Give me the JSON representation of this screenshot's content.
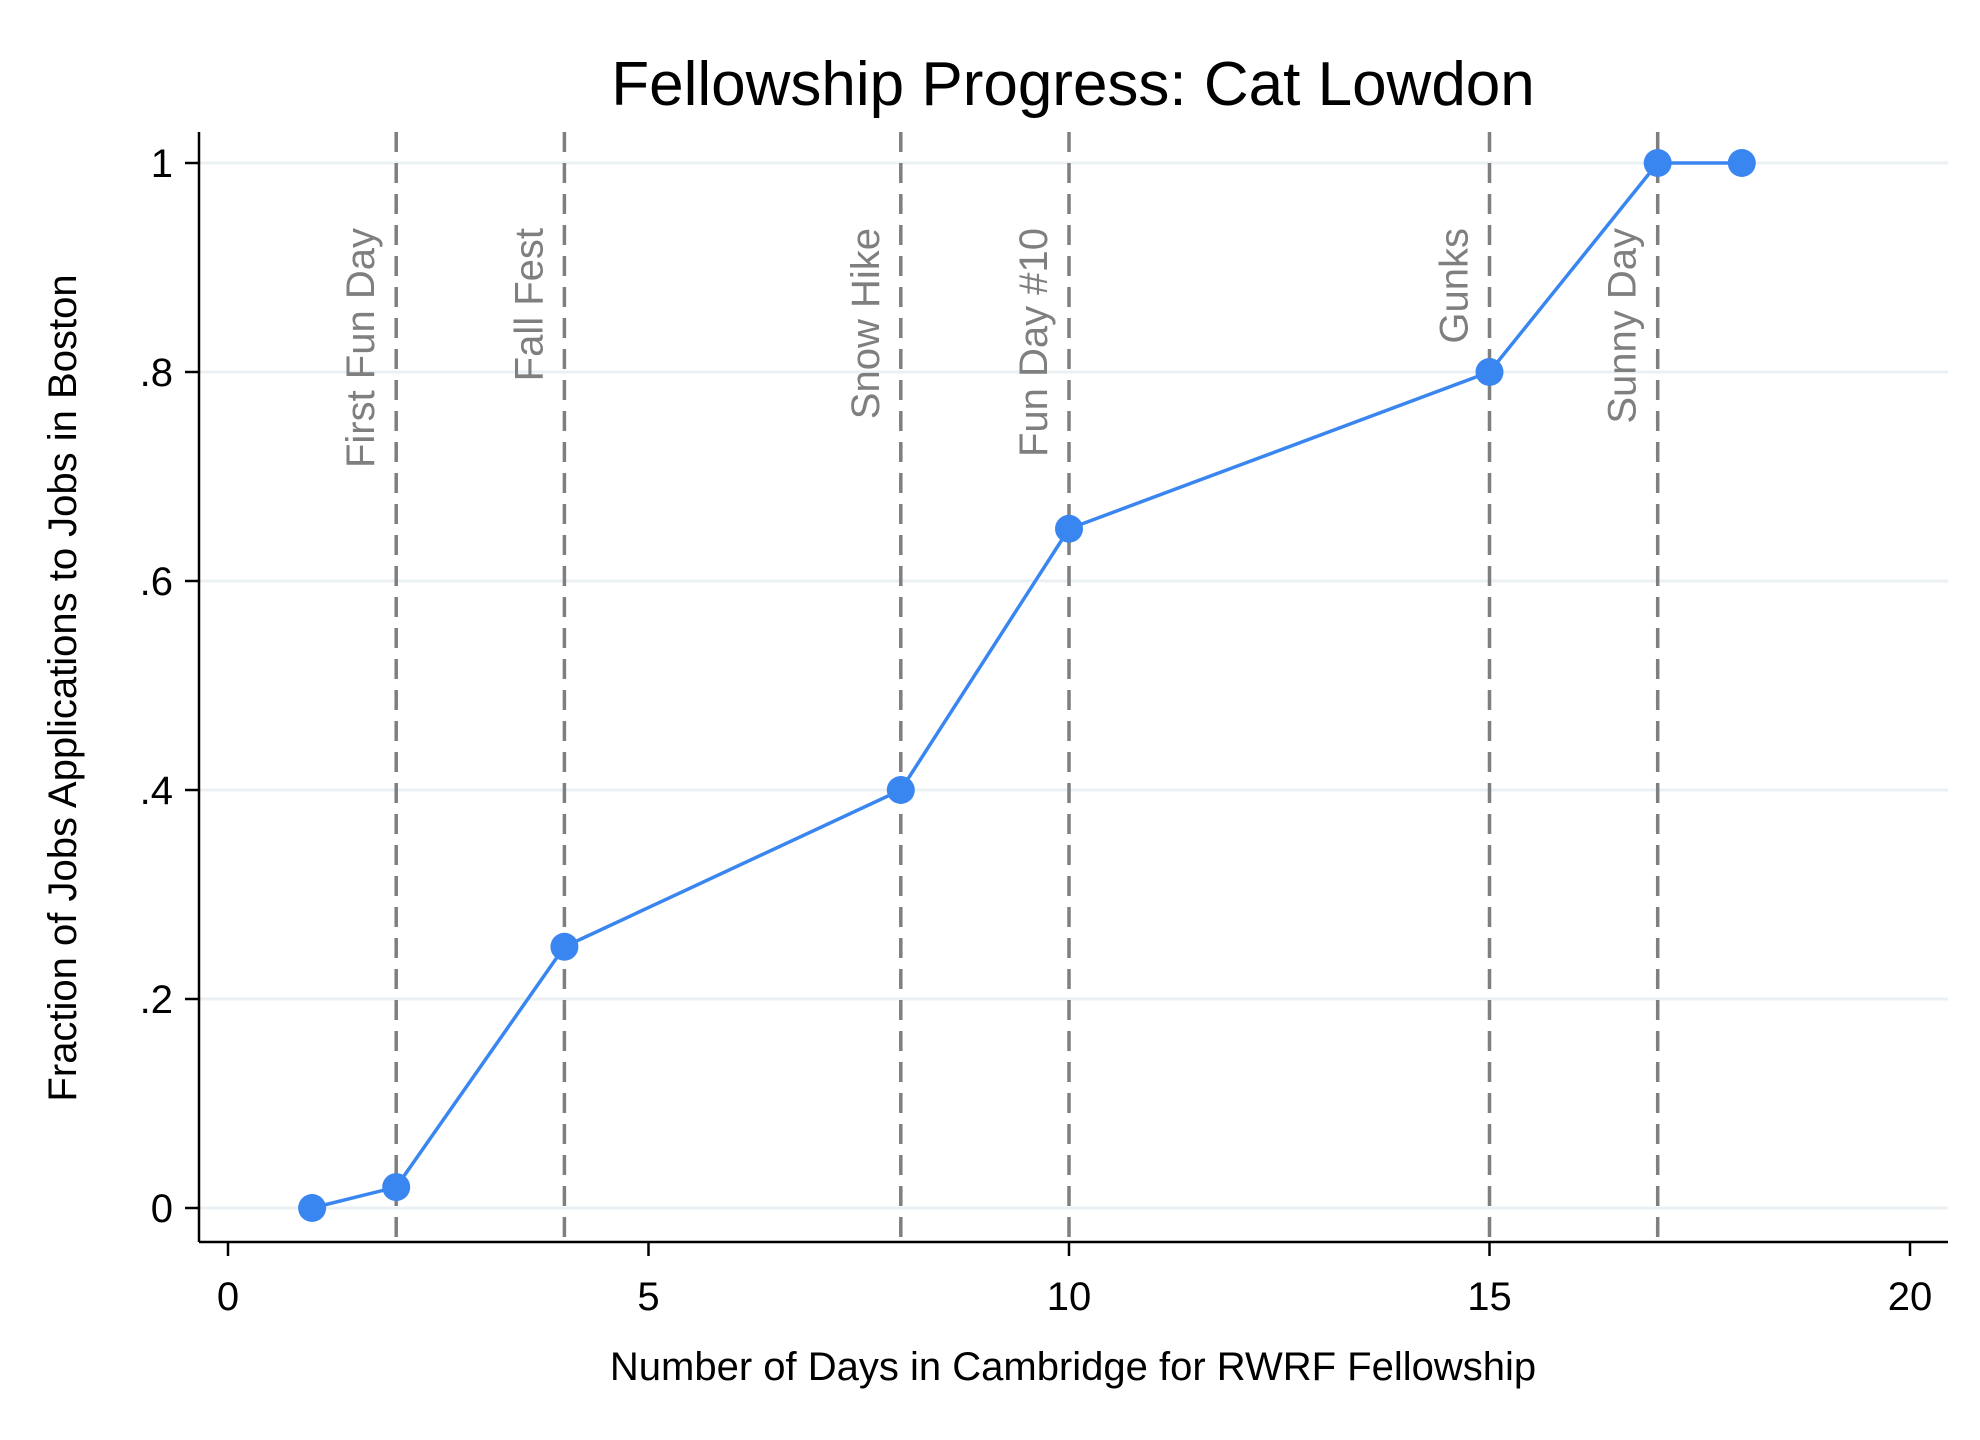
{
  "chart_data": {
    "type": "line",
    "title": "Fellowship Progress: Cat Lowdon",
    "xlabel": "Number of Days in Cambridge for RWRF Fellowship",
    "ylabel": "Fraction of Jobs Applications to Jobs in Boston",
    "xlim": [
      0,
      20
    ],
    "ylim": [
      0,
      1
    ],
    "x_ticks": [
      0,
      5,
      10,
      15,
      20
    ],
    "x_tick_labels": [
      "0",
      "5",
      "10",
      "15",
      "20"
    ],
    "y_ticks": [
      0,
      0.2,
      0.4,
      0.6,
      0.8,
      1
    ],
    "y_tick_labels": [
      "0",
      ".2",
      ".4",
      ".6",
      ".8",
      "1"
    ],
    "grid": "horizontal",
    "series": [
      {
        "color": "#3a86f0",
        "marker": "circle",
        "x": [
          1,
          2,
          4,
          8,
          10,
          15,
          17,
          18
        ],
        "y": [
          0,
          0.02,
          0.25,
          0.4,
          0.65,
          0.8,
          1,
          1
        ]
      }
    ],
    "annotations": [
      {
        "type": "vline",
        "x": 2,
        "label": "First Fun Day"
      },
      {
        "type": "vline",
        "x": 4,
        "label": "Fall Fest"
      },
      {
        "type": "vline",
        "x": 8,
        "label": "Snow Hike"
      },
      {
        "type": "vline",
        "x": 10,
        "label": "Fun Day #10"
      },
      {
        "type": "vline",
        "x": 15,
        "label": "Gunks"
      },
      {
        "type": "vline",
        "x": 17,
        "label": "Sunny Day"
      }
    ],
    "annotation_line_color": "#7f7f7f"
  }
}
